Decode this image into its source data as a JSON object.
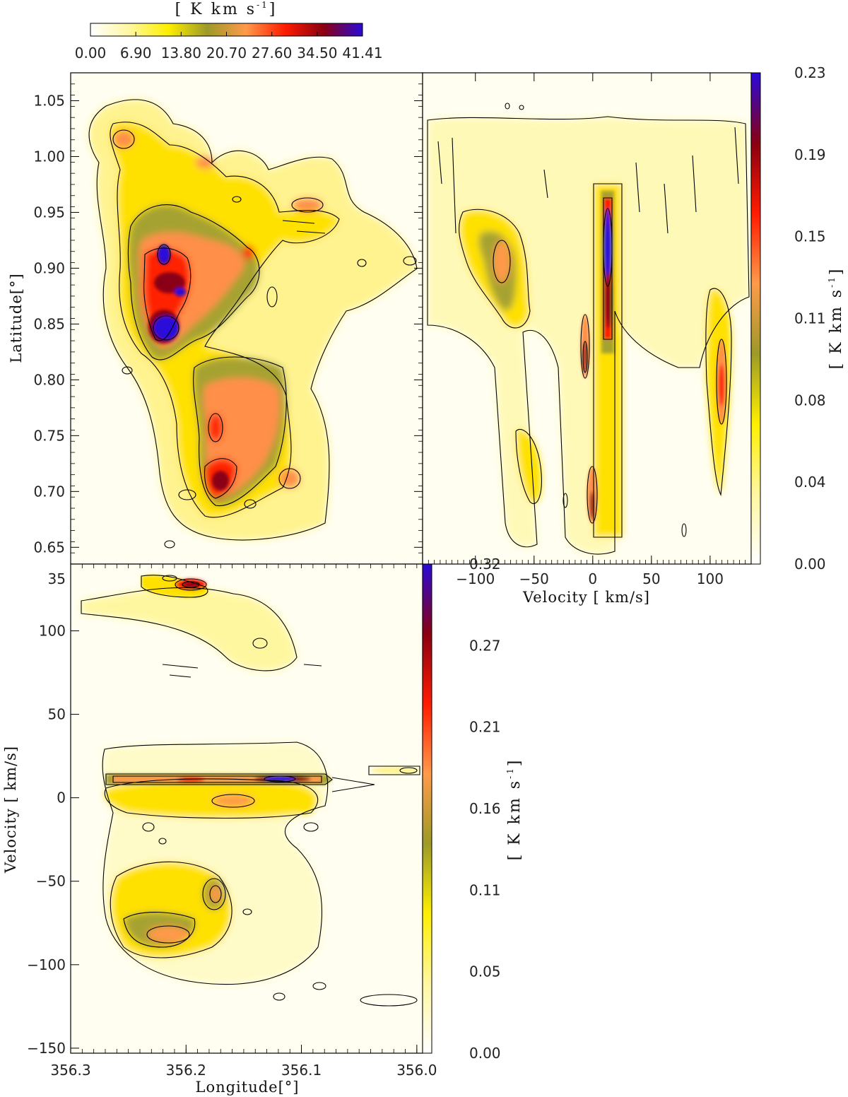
{
  "chart_data": [
    {
      "id": "moment0-map",
      "type": "heatmap",
      "title": "",
      "xlabel": "",
      "ylabel": "Latitude[°]",
      "xlim": [
        356.3,
        356.0
      ],
      "ylim": [
        0.635,
        1.075
      ],
      "yticks": [
        "0.65",
        "0.70",
        "0.75",
        "0.80",
        "0.85",
        "0.90",
        "0.95",
        "1.00",
        "1.05"
      ],
      "colorbar": {
        "label": "[ K km s",
        "label_sup": "-1",
        "label_close": "]",
        "ticks": [
          "0.00",
          "6.90",
          "13.80",
          "20.70",
          "27.60",
          "34.50",
          "41.41"
        ],
        "range": [
          0.0,
          41.41
        ],
        "placement": "top"
      },
      "peaks": [
        {
          "x": 356.22,
          "y": 0.845,
          "value": 41.0
        },
        {
          "x": 356.22,
          "y": 0.91,
          "value": 39.0
        },
        {
          "x": 356.21,
          "y": 0.88,
          "value": 34.0
        },
        {
          "x": 356.17,
          "y": 0.715,
          "value": 31.0
        },
        {
          "x": 356.17,
          "y": 0.76,
          "value": 27.0
        },
        {
          "x": 356.24,
          "y": 1.01,
          "value": 22.0
        },
        {
          "x": 356.07,
          "y": 0.955,
          "value": 20.0
        },
        {
          "x": 356.04,
          "y": 0.905,
          "value": 16.0
        }
      ]
    },
    {
      "id": "latitude-velocity",
      "type": "heatmap",
      "title": "",
      "xlabel": "Velocity [ km/s]",
      "ylabel": "",
      "xlim": [
        -145,
        135
      ],
      "ylim": [
        0.635,
        1.075
      ],
      "xticks": [
        "−100",
        "−50",
        "0",
        "50",
        "100"
      ],
      "xtick_fragment": "00",
      "colorbar": {
        "label": "[ K km s",
        "label_sup": "-1",
        "label_close": "]",
        "ticks": [
          "0.00",
          "0.04",
          "0.08",
          "0.11",
          "0.15",
          "0.19",
          "0.23"
        ],
        "range": [
          0.0,
          0.23
        ],
        "placement": "right"
      },
      "peaks": [
        {
          "x": 8,
          "y": 0.9,
          "value": 0.23
        },
        {
          "x": 8,
          "y": 0.85,
          "value": 0.19
        },
        {
          "x": -11,
          "y": 0.82,
          "value": 0.16
        },
        {
          "x": -83,
          "y": 0.9,
          "value": 0.13
        },
        {
          "x": 106,
          "y": 0.8,
          "value": 0.15
        },
        {
          "x": -5,
          "y": 0.69,
          "value": 0.14
        }
      ]
    },
    {
      "id": "velocity-longitude",
      "type": "heatmap",
      "title": "",
      "xlabel": "Longitude[°]",
      "ylabel": "Velocity [ km/s]",
      "xlim": [
        356.3,
        355.995
      ],
      "ylim": [
        -153,
        140
      ],
      "xticks": [
        "356.3",
        "356.2",
        "356.1",
        "356.0"
      ],
      "yticks": [
        "−150",
        "−100",
        "−50",
        "0",
        "50",
        "100"
      ],
      "ytick_fragment": "35",
      "colorbar": {
        "label": "[ K km s",
        "label_sup": "-1",
        "label_close": "]",
        "ticks": [
          "0.00",
          "0.05",
          "0.11",
          "0.16",
          "0.21",
          "0.27",
          "0.32"
        ],
        "range": [
          0.0,
          0.32
        ],
        "placement": "right"
      },
      "peaks": [
        {
          "x": 356.12,
          "y": 8,
          "value": 0.32
        },
        {
          "x": 356.2,
          "y": 7,
          "value": 0.25
        },
        {
          "x": 356.2,
          "y": 108,
          "value": 0.22
        },
        {
          "x": 356.225,
          "y": -85,
          "value": 0.16
        },
        {
          "x": 356.18,
          "y": -60,
          "value": 0.14
        },
        {
          "x": 356.15,
          "y": -8,
          "value": 0.14
        },
        {
          "x": 356.01,
          "y": 12,
          "value": 0.06
        }
      ]
    }
  ],
  "colors": {
    "colormap": [
      "#ffffff",
      "#fff7a0",
      "#ffef00",
      "#9c9a28",
      "#ff9a4a",
      "#ff1c00",
      "#8a0012",
      "#2a0ad8"
    ],
    "contour": "#000000"
  }
}
